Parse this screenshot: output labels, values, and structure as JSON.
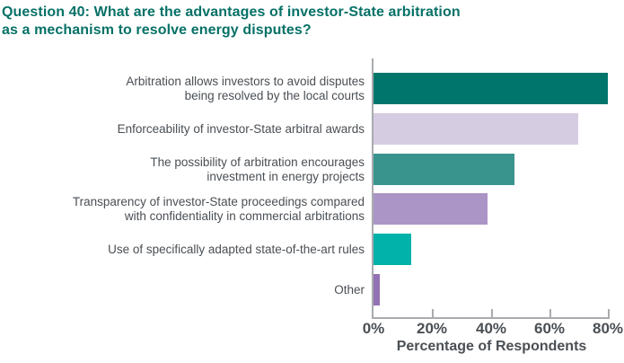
{
  "title": {
    "line1": "Question 40: What are the advantages of investor-State arbitration",
    "line2": "as a mechanism to resolve energy disputes?",
    "color": "#067167"
  },
  "chart_data": {
    "type": "bar",
    "orientation": "horizontal",
    "title": "Question 40: What are the advantages of investor-State arbitration as a mechanism to resolve energy disputes?",
    "xlabel": "Percentage of Respondents",
    "xlim": [
      0,
      86
    ],
    "grid": false,
    "legend": "none",
    "categories": [
      "Arbitration allows investors to avoid disputes being resolved by the local courts",
      "Enforceability of investor-State arbitral awards",
      "The possibility of arbitration encourages investment in energy projects",
      "Transparency of investor-State proceedings compared with confidentiality in commercial arbitrations",
      "Use of specifically adapted state-of-the-art rules",
      "Other"
    ],
    "category_lines": [
      [
        "Arbitration allows investors to avoid disputes",
        "being resolved by the local courts"
      ],
      [
        "Enforceability of investor-State arbitral awards"
      ],
      [
        "The possibility of arbitration encourages",
        "investment in energy projects"
      ],
      [
        "Transparency of investor-State proceedings compared",
        "with confidentiality in commercial arbitrations"
      ],
      [
        "Use of specifically adapted state-of-the-art rules"
      ],
      [
        "Other"
      ]
    ],
    "values": [
      80,
      70,
      48,
      39,
      13,
      2
    ],
    "bar_colors": [
      "#00756B",
      "#D5CCE2",
      "#39948E",
      "#AB95C7",
      "#00B2A9",
      "#9272B4"
    ],
    "x_ticks": [
      {
        "value": 0,
        "label": "0%"
      },
      {
        "value": 20,
        "label": "20%"
      },
      {
        "value": 40,
        "label": "40%"
      },
      {
        "value": 60,
        "label": "60%"
      },
      {
        "value": 80,
        "label": "80%"
      }
    ],
    "axis_color": "#A9ABAE",
    "text_color": "#4A4F54"
  }
}
